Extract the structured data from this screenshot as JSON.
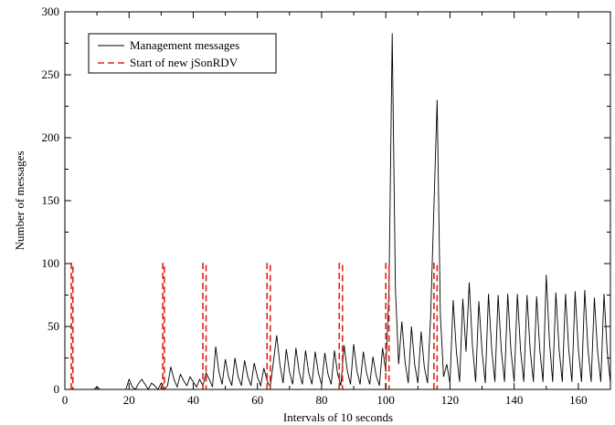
{
  "chart_data": {
    "type": "line",
    "title": "",
    "xlabel": "Intervals of 10 seconds",
    "ylabel": "Number of messages",
    "xlim": [
      0,
      170
    ],
    "ylim": [
      0,
      300
    ],
    "x_ticks": [
      0,
      20,
      40,
      60,
      80,
      100,
      120,
      140,
      160
    ],
    "y_ticks": [
      0,
      50,
      100,
      150,
      200,
      250,
      300
    ],
    "grid": false,
    "legend_position": "top-left",
    "series": [
      {
        "name": "Management messages",
        "color": "#000000",
        "style": "solid",
        "points": [
          [
            0,
            0
          ],
          [
            9,
            0
          ],
          [
            10,
            2
          ],
          [
            11,
            0
          ],
          [
            19,
            0
          ],
          [
            20,
            8
          ],
          [
            21,
            2
          ],
          [
            22,
            0
          ],
          [
            23,
            5
          ],
          [
            24,
            8
          ],
          [
            25,
            4
          ],
          [
            26,
            0
          ],
          [
            27,
            5
          ],
          [
            28,
            3
          ],
          [
            29,
            0
          ],
          [
            30,
            5
          ],
          [
            31,
            0
          ],
          [
            32,
            3
          ],
          [
            33,
            18
          ],
          [
            34,
            8
          ],
          [
            35,
            2
          ],
          [
            36,
            12
          ],
          [
            37,
            7
          ],
          [
            38,
            3
          ],
          [
            39,
            10
          ],
          [
            40,
            6
          ],
          [
            41,
            2
          ],
          [
            42,
            8
          ],
          [
            43,
            3
          ],
          [
            44,
            13
          ],
          [
            45,
            8
          ],
          [
            46,
            2
          ],
          [
            47,
            34
          ],
          [
            48,
            14
          ],
          [
            49,
            4
          ],
          [
            50,
            24
          ],
          [
            51,
            10
          ],
          [
            52,
            3
          ],
          [
            53,
            25
          ],
          [
            54,
            10
          ],
          [
            55,
            3
          ],
          [
            56,
            23
          ],
          [
            57,
            10
          ],
          [
            58,
            3
          ],
          [
            59,
            21
          ],
          [
            60,
            10
          ],
          [
            61,
            3
          ],
          [
            62,
            17
          ],
          [
            63,
            7
          ],
          [
            64,
            2
          ],
          [
            66,
            43
          ],
          [
            67,
            20
          ],
          [
            68,
            5
          ],
          [
            69,
            32
          ],
          [
            70,
            14
          ],
          [
            71,
            4
          ],
          [
            72,
            33
          ],
          [
            73,
            14
          ],
          [
            74,
            4
          ],
          [
            75,
            31
          ],
          [
            76,
            13
          ],
          [
            77,
            4
          ],
          [
            78,
            30
          ],
          [
            79,
            13
          ],
          [
            80,
            4
          ],
          [
            81,
            29
          ],
          [
            82,
            12
          ],
          [
            83,
            4
          ],
          [
            84,
            31
          ],
          [
            85,
            12
          ],
          [
            86,
            3
          ],
          [
            87,
            35
          ],
          [
            88,
            15
          ],
          [
            89,
            4
          ],
          [
            90,
            36
          ],
          [
            91,
            15
          ],
          [
            92,
            4
          ],
          [
            93,
            30
          ],
          [
            94,
            13
          ],
          [
            95,
            4
          ],
          [
            96,
            26
          ],
          [
            97,
            11
          ],
          [
            98,
            3
          ],
          [
            99,
            33
          ],
          [
            100,
            14
          ],
          [
            101,
            80
          ],
          [
            102,
            283
          ],
          [
            103,
            80
          ],
          [
            104,
            20
          ],
          [
            105,
            54
          ],
          [
            106,
            22
          ],
          [
            107,
            5
          ],
          [
            108,
            50
          ],
          [
            109,
            20
          ],
          [
            110,
            5
          ],
          [
            111,
            46
          ],
          [
            112,
            18
          ],
          [
            113,
            5
          ],
          [
            114,
            60
          ],
          [
            116,
            230
          ],
          [
            117,
            60
          ],
          [
            118,
            10
          ],
          [
            119,
            20
          ],
          [
            120,
            5
          ],
          [
            121,
            71
          ],
          [
            122,
            30
          ],
          [
            123,
            6
          ],
          [
            124,
            72
          ],
          [
            125,
            30
          ],
          [
            126,
            85
          ],
          [
            127,
            35
          ],
          [
            128,
            6
          ],
          [
            129,
            70
          ],
          [
            130,
            30
          ],
          [
            131,
            5
          ],
          [
            132,
            76
          ],
          [
            133,
            32
          ],
          [
            134,
            6
          ],
          [
            135,
            75
          ],
          [
            136,
            31
          ],
          [
            137,
            6
          ],
          [
            138,
            76
          ],
          [
            139,
            31
          ],
          [
            140,
            6
          ],
          [
            141,
            76
          ],
          [
            142,
            31
          ],
          [
            143,
            6
          ],
          [
            144,
            75
          ],
          [
            145,
            31
          ],
          [
            146,
            6
          ],
          [
            147,
            74
          ],
          [
            148,
            31
          ],
          [
            149,
            6
          ],
          [
            150,
            91
          ],
          [
            151,
            38
          ],
          [
            152,
            6
          ],
          [
            153,
            77
          ],
          [
            154,
            32
          ],
          [
            155,
            6
          ],
          [
            156,
            76
          ],
          [
            157,
            32
          ],
          [
            158,
            6
          ],
          [
            159,
            78
          ],
          [
            160,
            32
          ],
          [
            161,
            6
          ],
          [
            162,
            79
          ],
          [
            163,
            32
          ],
          [
            164,
            6
          ],
          [
            165,
            73
          ],
          [
            166,
            30
          ],
          [
            167,
            6
          ],
          [
            168,
            76
          ],
          [
            169,
            30
          ],
          [
            170,
            5
          ]
        ]
      },
      {
        "name": "Start of new jSonRDV",
        "color": "#e32119",
        "style": "dashed",
        "pulses": [
          [
            2,
            2.5
          ],
          [
            30.5,
            31
          ],
          [
            43,
            44
          ],
          [
            63,
            64
          ],
          [
            85.5,
            86.5
          ],
          [
            100,
            101
          ],
          [
            115,
            116
          ]
        ],
        "pulse_height": 100
      }
    ]
  }
}
